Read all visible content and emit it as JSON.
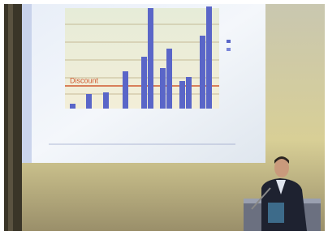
{
  "slide": {
    "label": "Discount"
  }
}
